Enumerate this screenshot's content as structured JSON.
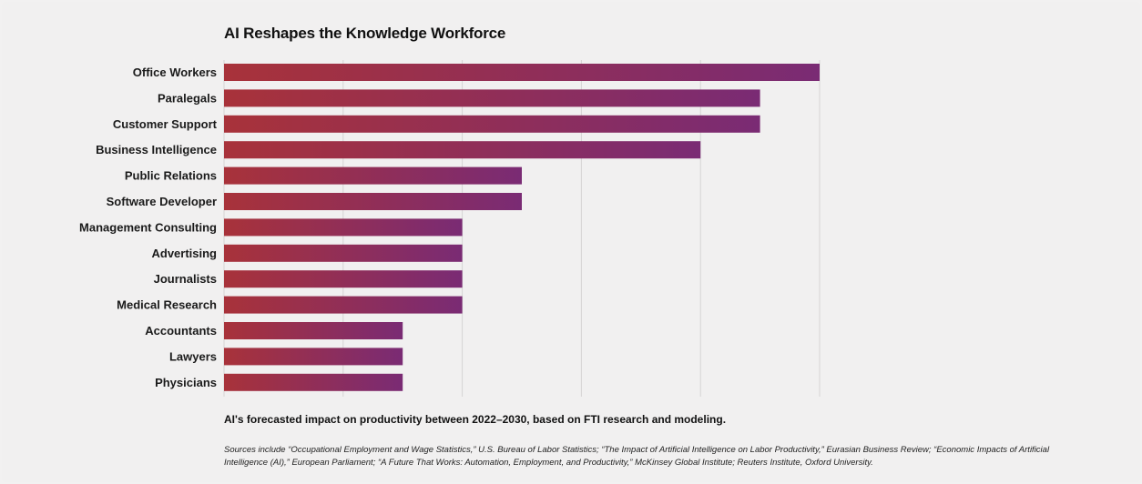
{
  "chart_data": {
    "type": "bar",
    "orientation": "horizontal",
    "title": "AI Reshapes the Knowledge Workforce",
    "categories": [
      "Office Workers",
      "Paralegals",
      "Customer Support",
      "Business Intelligence",
      "Public Relations",
      "Software Developer",
      "Management Consulting",
      "Advertising",
      "Journalists",
      "Medical Research",
      "Accountants",
      "Lawyers",
      "Physicians"
    ],
    "values": [
      5,
      4.5,
      4.5,
      4,
      2.5,
      2.5,
      2,
      2,
      2,
      2,
      1.5,
      1.5,
      1.5
    ],
    "xlim": [
      0,
      5
    ],
    "grid": true,
    "bar_gradient": [
      "#a8323a",
      "#7a2b74"
    ],
    "caption": "AI's forecasted impact on productivity between 2022–2030, based on FTI research and modeling.",
    "sources": "Sources include “Occupational Employment and Wage Statistics,” U.S. Bureau of Labor Statistics; “The Impact of Artificial Intelligence on Labor Productivity,” Eurasian Business Review; “Economic Impacts of Artificial Intelligence (AI),” European Parliament; “A Future That Works: Automation, Employment, and Productivity,” McKinsey Global Institute; Reuters Institute, Oxford University."
  }
}
